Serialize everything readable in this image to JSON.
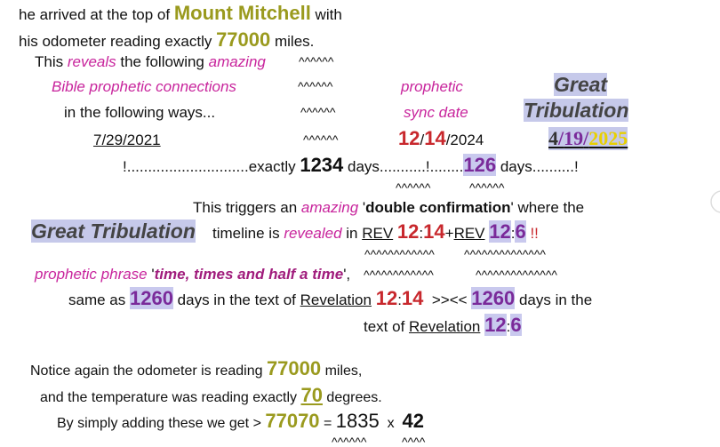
{
  "lines": [
    [
      "he arrived at the top of ",
      "Mount Mitchell",
      " with"
    ],
    [
      "his odometer reading exactly ",
      "77000",
      " miles."
    ],
    [
      "This ",
      "reveals",
      " the following ",
      "amazing"
    ],
    [
      "^^^^^^"
    ],
    [
      "Bible prophetic connections"
    ],
    [
      "^^^^^^"
    ],
    [
      "prophetic"
    ],
    [
      "Great"
    ],
    [
      "in the following ways..."
    ],
    [
      "^^^^^^"
    ],
    [
      "sync date"
    ],
    [
      "Tribulation"
    ],
    [
      "7/29/2021"
    ],
    [
      "^^^^^^"
    ],
    [
      "12",
      "/",
      "14",
      "/2024"
    ],
    [
      "4",
      "/",
      "19",
      "/",
      "2025"
    ],
    [
      "!.............................exactly ",
      "1234",
      " days...........!........",
      "126",
      " days..........!"
    ],
    [
      "^^^^^^"
    ],
    [
      "^^^^^^"
    ],
    [
      "This triggers an ",
      "amazing",
      " '",
      "double confirmation",
      "' where the"
    ],
    [
      "Great Tribulation"
    ],
    [
      "timeline is ",
      "revealed",
      " in ",
      "REV",
      " ",
      "12",
      ":",
      "14",
      "+",
      "REV",
      " ",
      "12",
      ":",
      "6",
      " !!"
    ],
    [
      "^^^^^^^^^^^^"
    ],
    [
      "^^^^^^^^^^^^^^"
    ],
    [
      "prophetic phrase ",
      "'",
      "time, times and half a time",
      "',"
    ],
    [
      "^^^^^^^^^^^^"
    ],
    [
      "^^^^^^^^^^^^^^"
    ],
    [
      "same as ",
      "1260",
      " days in the text of ",
      "Revelation",
      " ",
      "12",
      ":",
      "14",
      "  >><< ",
      "1260",
      " days in the"
    ],
    [
      "text of ",
      "Revelation",
      " ",
      "12",
      ":",
      "6"
    ],
    [
      "Notice again the odometer is reading ",
      "77000",
      " miles,"
    ],
    [
      "and the temperature was reading exactly ",
      "70",
      " degrees."
    ],
    [
      "By simply adding these we get > ",
      "77070",
      " = ",
      "1835",
      "  x  ",
      "42"
    ],
    [
      "^^^^^^"
    ],
    [
      "^^^^"
    ]
  ]
}
